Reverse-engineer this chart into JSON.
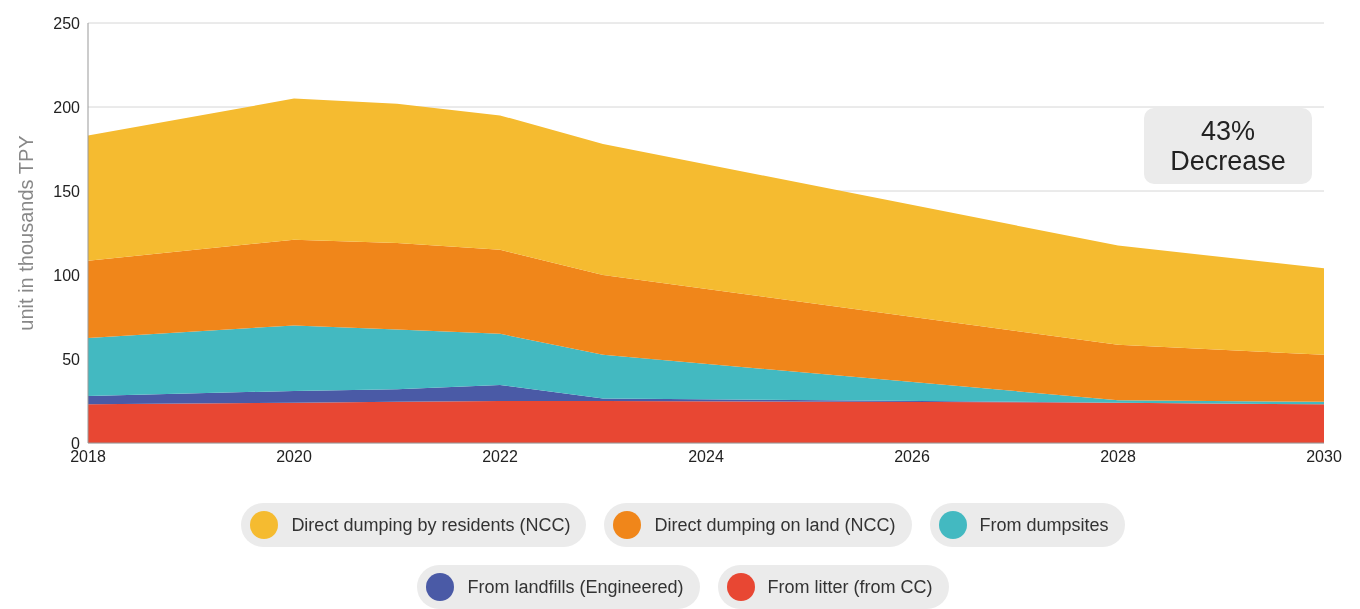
{
  "chart_data": {
    "type": "area",
    "stacked": true,
    "ylabel": "unit in thousands TPY",
    "x": [
      2018,
      2020,
      2021,
      2022,
      2023,
      2028,
      2030
    ],
    "xlim": [
      2018,
      2030
    ],
    "xticks": [
      2018,
      2020,
      2022,
      2024,
      2026,
      2028,
      2030
    ],
    "ylim": [
      0,
      250
    ],
    "yticks": [
      0,
      50,
      100,
      150,
      200,
      250
    ],
    "grid": "y",
    "legend": "bottom",
    "annotations": [
      "43%\nDecrease"
    ],
    "series": [
      {
        "name": "From litter (from CC)",
        "color": "#e84733",
        "values": [
          23,
          24,
          24.5,
          25,
          25,
          24,
          23
        ]
      },
      {
        "name": "From landfills (Engineered)",
        "color": "#4a5aa6",
        "values": [
          5,
          7,
          7.5,
          9.5,
          1.5,
          0,
          0
        ]
      },
      {
        "name": "From dumpsites",
        "color": "#43b9c1",
        "values": [
          34.5,
          39,
          35.5,
          30.5,
          26,
          1.5,
          1.5
        ]
      },
      {
        "name": "Direct dumping on land (NCC)",
        "color": "#f0861a",
        "values": [
          46,
          51,
          51.5,
          50,
          47.5,
          33,
          28
        ]
      },
      {
        "name": "Direct dumping by residents (NCC)",
        "color": "#f5bb30",
        "values": [
          74.5,
          84,
          83,
          80,
          78,
          59,
          51.5
        ]
      }
    ]
  }
}
